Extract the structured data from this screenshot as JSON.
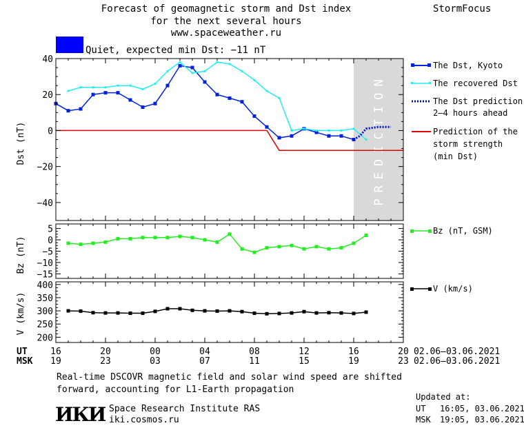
{
  "header": {
    "title_line1": "Forecast of geomagnetic storm and Dst index",
    "title_line2": "for the next several hours",
    "title_line3": "www.spaceweather.ru",
    "brand": "StormFocus"
  },
  "status": {
    "text": "Quiet, expected min Dst: −11 nT",
    "color": "#0000ff"
  },
  "colors": {
    "dst_kyoto": "#0022dd",
    "dst_recovered": "#22eeee",
    "dst_prediction": "#0011cc",
    "storm_strength": "#dd0000",
    "bz": "#22ee22",
    "v": "#000000",
    "prediction_zone": "#d9d9d9"
  },
  "legend": {
    "dst_kyoto": "The Dst, Kyoto",
    "dst_recovered": "The recovered Dst",
    "dst_prediction_1": "The Dst prediction",
    "dst_prediction_2": "2–4 hours ahead",
    "storm_1": "Prediction of the",
    "storm_2": "storm strength",
    "storm_3": "(min Dst)",
    "bz": "Bz (nT, GSM)",
    "v": "V (km/s)"
  },
  "prediction_label": "PREDICTION",
  "axes": {
    "dst_ylabel": "Dst (nT)",
    "bz_ylabel": "Bz (nT)",
    "v_ylabel": "V (km/s)",
    "ut_label": "UT",
    "msk_label": "MSK",
    "ut_ticks": [
      "16",
      "20",
      "00",
      "04",
      "08",
      "12",
      "16",
      "20"
    ],
    "msk_ticks": [
      "19",
      "23",
      "03",
      "07",
      "11",
      "15",
      "19",
      "23"
    ],
    "date_range_ut": "02.06–03.06.2021",
    "date_range_msk": "02.06–03.06.2021"
  },
  "footer": {
    "note_line1": "Real-time DSCOVR magnetic field and solar wind speed are shifted",
    "note_line2": "forward, accounting for L1-Earth propagation",
    "logo_text": "ИКИ",
    "institute": "Space Research Institute RAS",
    "site": "iki.cosmos.ru",
    "updated_label": "Updated at:",
    "updated_ut_label": "UT",
    "updated_ut": "16:05, 03.06.2021",
    "updated_msk_label": "MSK",
    "updated_msk": "19:05, 03.06.2021"
  },
  "chart_data": [
    {
      "type": "line",
      "title": "Forecast of geomagnetic storm and Dst index",
      "ylabel": "Dst (nT)",
      "xlim": [
        0,
        28
      ],
      "ylim": [
        -50,
        40
      ],
      "yticks": [
        40,
        20,
        0,
        -20,
        -40
      ],
      "prediction_zone_x": [
        24,
        28
      ],
      "series": [
        {
          "name": "The Dst, Kyoto",
          "style": "line-square",
          "x": [
            0,
            1,
            2,
            3,
            4,
            5,
            6,
            7,
            8,
            9,
            10,
            11,
            12,
            13,
            14,
            15,
            16,
            17,
            18,
            19,
            20,
            21,
            22,
            23,
            24
          ],
          "y": [
            15,
            11,
            12,
            20,
            21,
            21,
            17,
            13,
            15,
            25,
            36,
            35,
            27,
            20,
            18,
            16,
            8,
            2,
            -4,
            -3,
            1,
            -1,
            -3,
            -3,
            -5
          ]
        },
        {
          "name": "The recovered Dst",
          "style": "line-dot",
          "x": [
            1,
            2,
            3,
            4,
            5,
            6,
            7,
            8,
            9,
            10,
            11,
            12,
            13,
            14,
            15,
            16,
            17,
            18,
            19,
            20,
            21,
            22,
            23,
            24,
            25
          ],
          "y": [
            22,
            24,
            24,
            24,
            25,
            25,
            23,
            26,
            33,
            38,
            32,
            33,
            38,
            37,
            33,
            28,
            22,
            18,
            0,
            1,
            0,
            0,
            0,
            1,
            -5
          ]
        },
        {
          "name": "The Dst prediction",
          "style": "dotted",
          "x": [
            24,
            24.5,
            25,
            26,
            27
          ],
          "y": [
            -5,
            -3,
            1,
            2,
            2
          ]
        },
        {
          "name": "Prediction of the storm strength",
          "style": "line",
          "x": [
            0,
            17,
            18,
            28
          ],
          "y": [
            0,
            0,
            -11,
            -11
          ]
        }
      ]
    },
    {
      "type": "line",
      "ylabel": "Bz (nT)",
      "xlim": [
        0,
        28
      ],
      "ylim": [
        -17,
        7
      ],
      "yticks": [
        5,
        0,
        -5,
        -10,
        -15
      ],
      "series": [
        {
          "name": "Bz (nT, GSM)",
          "style": "line-square",
          "x": [
            1,
            2,
            3,
            4,
            5,
            6,
            7,
            8,
            9,
            10,
            11,
            12,
            13,
            14,
            15,
            16,
            17,
            18,
            19,
            20,
            21,
            22,
            23,
            24,
            25
          ],
          "y": [
            -1.5,
            -2,
            -1.5,
            -1,
            0.5,
            0.5,
            1,
            1,
            1,
            1.5,
            1,
            0,
            -1,
            2.5,
            -4,
            -5.5,
            -3.5,
            -3,
            -2.5,
            -4,
            -3,
            -4,
            -3.5,
            -1.5,
            2
          ]
        }
      ]
    },
    {
      "type": "line",
      "ylabel": "V (km/s)",
      "xlim": [
        0,
        28
      ],
      "ylim": [
        180,
        410
      ],
      "yticks": [
        400,
        350,
        300,
        250,
        200
      ],
      "series": [
        {
          "name": "V (km/s)",
          "style": "line-square",
          "x": [
            1,
            2,
            3,
            4,
            5,
            6,
            7,
            8,
            9,
            10,
            11,
            12,
            13,
            14,
            15,
            16,
            17,
            18,
            19,
            20,
            21,
            22,
            23,
            24,
            25
          ],
          "y": [
            300,
            299,
            293,
            292,
            292,
            291,
            291,
            298,
            308,
            308,
            302,
            300,
            299,
            300,
            297,
            291,
            289,
            290,
            292,
            297,
            292,
            293,
            292,
            290,
            295
          ]
        }
      ]
    }
  ]
}
